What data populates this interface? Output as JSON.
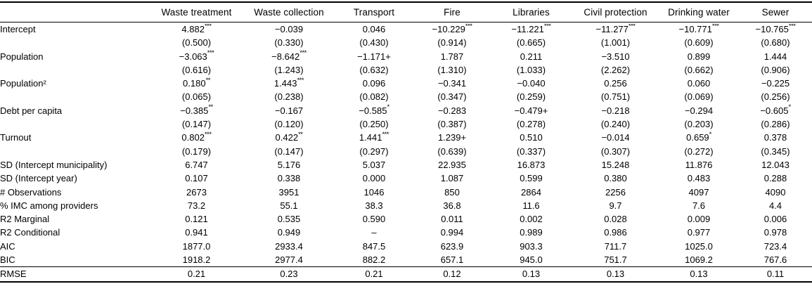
{
  "colors": {
    "background": "#ffffff",
    "text": "#000000",
    "rule": "#000000"
  },
  "table": {
    "name": "mixed-effects-regression-results",
    "stub_header": "",
    "columns": [
      "Waste treatment",
      "Waste collection",
      "Transport",
      "Fire",
      "Libraries",
      "Civil protection",
      "Drinking water",
      "Sewer"
    ],
    "rows": [
      {
        "label": "Intercept",
        "values": [
          "4.882***",
          "−0.039",
          "0.046",
          "−10.229***",
          "−11.221***",
          "−11.277***",
          "−10.771***",
          "−10.765***"
        ],
        "se": [
          "(0.500)",
          "(0.330)",
          "(0.430)",
          "(0.914)",
          "(0.665)",
          "(1.001)",
          "(0.609)",
          "(0.680)"
        ]
      },
      {
        "label": "Population",
        "values": [
          "−3.063***",
          "−8.642***",
          "−1.171+",
          "1.787",
          "0.211",
          "−3.510",
          "0.899",
          "1.444"
        ],
        "se": [
          "(0.616)",
          "(1.243)",
          "(0.632)",
          "(1.310)",
          "(1.033)",
          "(2.262)",
          "(0.662)",
          "(0.906)"
        ]
      },
      {
        "label": "Population²",
        "values": [
          "0.180**",
          "1.443***",
          "0.096",
          "−0.341",
          "−0.040",
          "0.256",
          "0.060",
          "−0.225"
        ],
        "se": [
          "(0.065)",
          "(0.238)",
          "(0.082)",
          "(0.347)",
          "(0.259)",
          "(0.751)",
          "(0.069)",
          "(0.256)"
        ]
      },
      {
        "label": "Debt per capita",
        "values": [
          "−0.385**",
          "−0.167",
          "−0.585*",
          "−0.283",
          "−0.479+",
          "−0.218",
          "−0.294",
          "−0.605*"
        ],
        "se": [
          "(0.147)",
          "(0.120)",
          "(0.250)",
          "(0.387)",
          "(0.278)",
          "(0.240)",
          "(0.203)",
          "(0.286)"
        ]
      },
      {
        "label": "Turnout",
        "values": [
          "0.802***",
          "0.422**",
          "1.441***",
          "1.239+",
          "0.510",
          "−0.014",
          "0.659*",
          "0.378"
        ],
        "se": [
          "(0.179)",
          "(0.147)",
          "(0.297)",
          "(0.639)",
          "(0.337)",
          "(0.307)",
          "(0.272)",
          "(0.345)"
        ]
      },
      {
        "label": "SD (Intercept municipality)",
        "values": [
          "6.747",
          "5.176",
          "5.037",
          "22.935",
          "16.873",
          "15.248",
          "11.876",
          "12.043"
        ]
      },
      {
        "label": "SD (Intercept year)",
        "values": [
          "0.107",
          "0.338",
          "0.000",
          "1.087",
          "0.599",
          "0.380",
          "0.483",
          "0.288"
        ]
      },
      {
        "label": "# Observations",
        "values": [
          "2673",
          "3951",
          "1046",
          "850",
          "2864",
          "2256",
          "4097",
          "4090"
        ]
      },
      {
        "label": "% IMC among providers",
        "values": [
          "73.2",
          "55.1",
          "38.3",
          "36.8",
          "11.6",
          "9.7",
          "7.6",
          "4.4"
        ]
      },
      {
        "label": "R2 Marginal",
        "values": [
          "0.121",
          "0.535",
          "0.590",
          "0.011",
          "0.002",
          "0.028",
          "0.009",
          "0.006"
        ]
      },
      {
        "label": "R2 Conditional",
        "values": [
          "0.941",
          "0.949",
          "–",
          "0.994",
          "0.989",
          "0.986",
          "0.977",
          "0.978"
        ]
      },
      {
        "label": "AIC",
        "values": [
          "1877.0",
          "2933.4",
          "847.5",
          "623.9",
          "903.3",
          "711.7",
          "1025.0",
          "723.4"
        ]
      },
      {
        "label": "BIC",
        "values": [
          "1918.2",
          "2977.4",
          "882.2",
          "657.1",
          "945.0",
          "751.7",
          "1069.2",
          "767.6"
        ]
      },
      {
        "label": "RMSE",
        "values": [
          "0.21",
          "0.23",
          "0.21",
          "0.12",
          "0.13",
          "0.13",
          "0.13",
          "0.11"
        ]
      }
    ]
  }
}
